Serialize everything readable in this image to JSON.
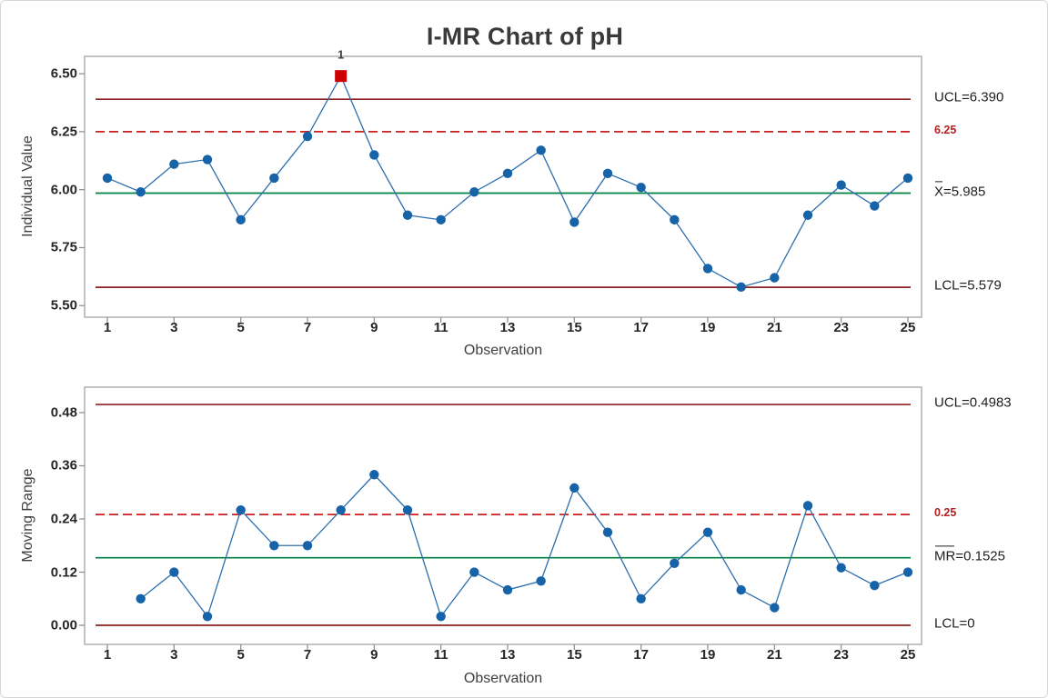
{
  "title": "I-MR Chart of pH",
  "colors": {
    "point": "#1663a8",
    "series_line": "#2c6fae",
    "center_line": "#008040",
    "control_limit_line": "#8b2121",
    "spec_line": "#cc1f1f",
    "spec_label": "#b22020",
    "out_of_control": "#cc0000",
    "plot_border": "#a3a3a3",
    "tick_mark": "#8c8c8c"
  },
  "chart_data": [
    {
      "type": "line",
      "panel": "individuals",
      "ylabel": "Individual Value",
      "xlabel": "Observation",
      "x": [
        1,
        2,
        3,
        4,
        5,
        6,
        7,
        8,
        9,
        10,
        11,
        12,
        13,
        14,
        15,
        16,
        17,
        18,
        19,
        20,
        21,
        22,
        23,
        24,
        25
      ],
      "values": [
        6.05,
        5.99,
        6.11,
        6.13,
        5.87,
        6.05,
        6.23,
        6.49,
        6.15,
        5.89,
        5.87,
        5.99,
        6.07,
        6.17,
        5.86,
        6.07,
        6.01,
        5.87,
        5.66,
        5.58,
        5.62,
        5.89,
        6.02,
        5.93,
        6.05
      ],
      "xlim": [
        1,
        25
      ],
      "ylim": [
        5.45,
        6.575
      ],
      "grid": false,
      "legend": "none",
      "xticks": [
        1,
        3,
        5,
        7,
        9,
        11,
        13,
        15,
        17,
        19,
        21,
        23,
        25
      ],
      "ytick_values": [
        6.5,
        6.25,
        6.0,
        5.75,
        5.5
      ],
      "ytick_labels": [
        "6.50",
        "6.25",
        "6.00",
        "5.75",
        "5.50"
      ],
      "reference_lines": [
        {
          "id": "ucl",
          "value": 6.39,
          "label": "UCL=6.390",
          "style": "solid",
          "line": "control",
          "overline": 0
        },
        {
          "id": "spec-upper",
          "value": 6.25,
          "label": "6.25",
          "style": "dashed",
          "line": "spec",
          "overline": 0
        },
        {
          "id": "center",
          "value": 5.985,
          "label": "X=5.985",
          "style": "solid",
          "line": "center",
          "overline": 1
        },
        {
          "id": "lcl",
          "value": 5.579,
          "label": "LCL=5.579",
          "style": "solid",
          "line": "control",
          "overline": 0
        }
      ],
      "out_of_control_points": [
        {
          "x": 8,
          "value": 6.49,
          "label": "1"
        }
      ]
    },
    {
      "type": "line",
      "panel": "moving-range",
      "ylabel": "Moving Range",
      "xlabel": "Observation",
      "x": [
        2,
        3,
        4,
        5,
        6,
        7,
        8,
        9,
        10,
        11,
        12,
        13,
        14,
        15,
        16,
        17,
        18,
        19,
        20,
        21,
        22,
        23,
        24,
        25
      ],
      "values": [
        0.06,
        0.12,
        0.02,
        0.26,
        0.18,
        0.18,
        0.26,
        0.34,
        0.26,
        0.02,
        0.12,
        0.08,
        0.1,
        0.31,
        0.21,
        0.06,
        0.14,
        0.21,
        0.08,
        0.04,
        0.27,
        0.13,
        0.09,
        0.12
      ],
      "xlim": [
        1,
        25
      ],
      "ylim": [
        -0.043,
        0.5374
      ],
      "grid": false,
      "legend": "none",
      "xticks": [
        1,
        3,
        5,
        7,
        9,
        11,
        13,
        15,
        17,
        19,
        21,
        23,
        25
      ],
      "ytick_values": [
        0.48,
        0.36,
        0.24,
        0.12,
        0.0
      ],
      "ytick_labels": [
        "0.48",
        "0.36",
        "0.24",
        "0.12",
        "0.00"
      ],
      "reference_lines": [
        {
          "id": "ucl",
          "value": 0.4983,
          "label": "UCL=0.4983",
          "style": "solid",
          "line": "control",
          "overline": 0
        },
        {
          "id": "spec-upper",
          "value": 0.25,
          "label": "0.25",
          "style": "dashed",
          "line": "spec",
          "overline": 0
        },
        {
          "id": "center",
          "value": 0.1525,
          "label": "MR=0.1525",
          "style": "solid",
          "line": "center",
          "overline": 2
        },
        {
          "id": "lcl",
          "value": 0,
          "label": "LCL=0",
          "style": "solid",
          "line": "control",
          "overline": 0
        }
      ],
      "out_of_control_points": []
    }
  ]
}
